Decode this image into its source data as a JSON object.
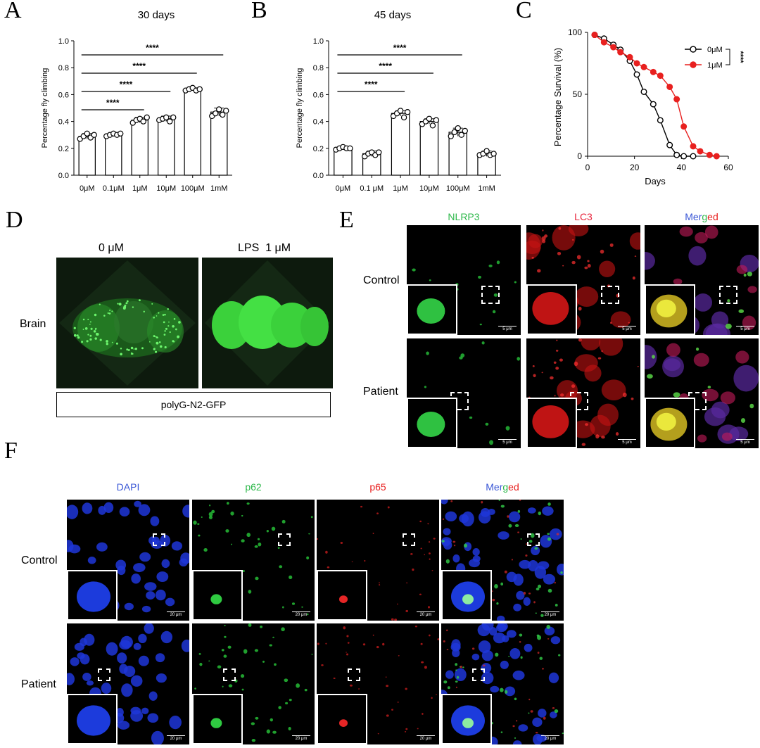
{
  "panels": {
    "A": {
      "letter": "A",
      "chart_data": {
        "type": "bar",
        "title": "30 days",
        "ylabel": "Percentage fly climbing",
        "xlabel": "",
        "categories": [
          "0μM",
          "0.1μM",
          "1μM",
          "10μM",
          "100μM",
          "1mM"
        ],
        "values": [
          0.29,
          0.3,
          0.41,
          0.42,
          0.64,
          0.47
        ],
        "errors": [
          0.02,
          0.01,
          0.02,
          0.02,
          0.01,
          0.03
        ],
        "points": [
          [
            0.27,
            0.29,
            0.31,
            0.28,
            0.3
          ],
          [
            0.29,
            0.3,
            0.31,
            0.3,
            0.31
          ],
          [
            0.39,
            0.41,
            0.42,
            0.4,
            0.43
          ],
          [
            0.41,
            0.42,
            0.43,
            0.4,
            0.43
          ],
          [
            0.63,
            0.64,
            0.65,
            0.63,
            0.64
          ],
          [
            0.44,
            0.46,
            0.49,
            0.45,
            0.48
          ]
        ],
        "ylim": [
          0,
          1.0
        ],
        "yticks": [
          "0.0",
          "0.2",
          "0.4",
          "0.6",
          "0.8",
          "1.0"
        ],
        "significance": [
          {
            "from": 0,
            "to": 2,
            "label": "****"
          },
          {
            "from": 0,
            "to": 3,
            "label": "****"
          },
          {
            "from": 0,
            "to": 4,
            "label": "****"
          },
          {
            "from": 0,
            "to": 5,
            "label": "****"
          }
        ]
      }
    },
    "B": {
      "letter": "B",
      "chart_data": {
        "type": "bar",
        "title": "45 days",
        "ylabel": "Percentage fly climbing",
        "xlabel": "",
        "categories": [
          "0μM",
          "0.1 μM",
          "1μM",
          "10μM",
          "100μM",
          "1mM"
        ],
        "values": [
          0.2,
          0.16,
          0.46,
          0.4,
          0.32,
          0.16
        ],
        "errors": [
          0.01,
          0.02,
          0.02,
          0.02,
          0.03,
          0.02
        ],
        "points": [
          [
            0.19,
            0.2,
            0.21,
            0.2,
            0.2
          ],
          [
            0.14,
            0.16,
            0.17,
            0.15,
            0.17
          ],
          [
            0.44,
            0.46,
            0.48,
            0.43,
            0.47
          ],
          [
            0.38,
            0.4,
            0.42,
            0.37,
            0.41
          ],
          [
            0.29,
            0.32,
            0.35,
            0.3,
            0.33
          ],
          [
            0.15,
            0.16,
            0.18,
            0.15,
            0.16
          ]
        ],
        "ylim": [
          0,
          1.0
        ],
        "yticks": [
          "0.0",
          "0.2",
          "0.4",
          "0.6",
          "0.8",
          "1.0"
        ],
        "significance": [
          {
            "from": 0,
            "to": 2,
            "label": "****"
          },
          {
            "from": 0,
            "to": 3,
            "label": "****"
          },
          {
            "from": 0,
            "to": 4,
            "label": "****"
          }
        ]
      }
    },
    "C": {
      "letter": "C",
      "chart_data": {
        "type": "line",
        "xlabel": "Days",
        "ylabel": "Percentage Survival (%)",
        "xlim": [
          0,
          60
        ],
        "ylim": [
          0,
          100
        ],
        "xticks": [
          "0",
          "20",
          "40",
          "60"
        ],
        "yticks": [
          "0",
          "50",
          "100"
        ],
        "legend_position": "top-right",
        "significance_label": "****",
        "series": [
          {
            "name": "0μM",
            "color": "#000000",
            "filled": false,
            "x": [
              3,
              7,
              11,
              14,
              18,
              21,
              24,
              28,
              31,
              35,
              38,
              41,
              45
            ],
            "y": [
              98,
              95,
              90,
              86,
              77,
              66,
              52,
              42,
              29,
              9,
              1,
              0,
              0
            ]
          },
          {
            "name": "1μM",
            "color": "#e8201f",
            "filled": true,
            "x": [
              3,
              7,
              11,
              14,
              18,
              21,
              24,
              28,
              31,
              35,
              38,
              41,
              45,
              48,
              52,
              55
            ],
            "y": [
              98,
              92,
              88,
              84,
              80,
              75,
              72,
              68,
              65,
              56,
              46,
              24,
              8,
              4,
              1,
              0
            ]
          }
        ]
      }
    },
    "D": {
      "letter": "D",
      "col_labels": [
        "0 μM",
        "LPS  1 μM"
      ],
      "row_label": "Brain",
      "caption": "polyG-N2-GFP"
    },
    "E": {
      "letter": "E",
      "channels": [
        {
          "text": "NLRP3",
          "color": "#2db84a"
        },
        {
          "text": "LC3",
          "color": "#e8253d"
        },
        {
          "text": "Merged",
          "color": "multi"
        }
      ],
      "rows": [
        "Control",
        "Patient"
      ],
      "scale_label": "5 μm"
    },
    "F": {
      "letter": "F",
      "channels": [
        {
          "text": "DAPI",
          "color": "#3a57d6"
        },
        {
          "text": "p62",
          "color": "#2db84a"
        },
        {
          "text": "p65",
          "color": "#e8201f"
        },
        {
          "text": "Merged",
          "color": "multi"
        }
      ],
      "rows": [
        "Control",
        "Patient"
      ],
      "scale_label": "20 μm"
    },
    "merged_parts": [
      {
        "text": "Mer",
        "color": "#3a57d6"
      },
      {
        "text": "g",
        "color": "#2db84a"
      },
      {
        "text": "ed",
        "color": "#e8201f"
      }
    ]
  }
}
